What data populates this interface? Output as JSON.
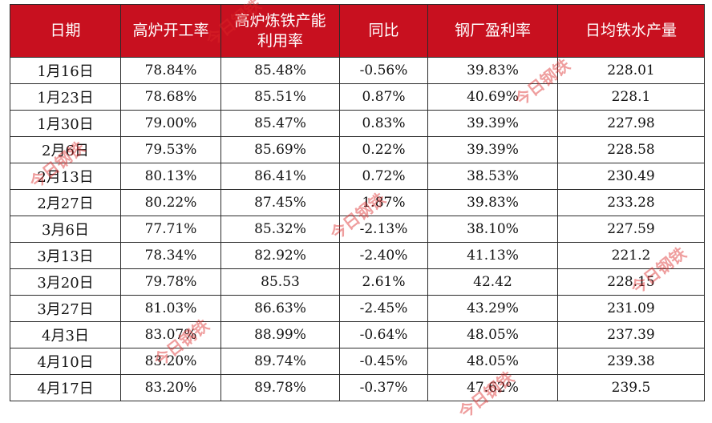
{
  "table": {
    "columns": [
      "日期",
      "高炉开工率",
      "高炉炼铁产能利用率",
      "同比",
      "钢厂盈利率",
      "日均铁水产量"
    ],
    "rows": [
      [
        "1月16日",
        "78.84%",
        "85.48%",
        "-0.56%",
        "39.83%",
        "228.01"
      ],
      [
        "1月23日",
        "78.68%",
        "85.51%",
        "0.87%",
        "40.69%",
        "228.1"
      ],
      [
        "1月30日",
        "79.00%",
        "85.47%",
        "0.83%",
        "39.39%",
        "227.98"
      ],
      [
        "2月6日",
        "79.53%",
        "85.69%",
        "0.22%",
        "39.39%",
        "228.58"
      ],
      [
        "2月13日",
        "80.13%",
        "86.41%",
        "0.72%",
        "38.53%",
        "230.49"
      ],
      [
        "2月27日",
        "80.22%",
        "87.45%",
        "1.87%",
        "39.83%",
        "233.28"
      ],
      [
        "3月6日",
        "77.71%",
        "85.32%",
        "-2.13%",
        "38.10%",
        "227.59"
      ],
      [
        "3月13日",
        "78.34%",
        "82.92%",
        "-2.40%",
        "41.13%",
        "221.2"
      ],
      [
        "3月20日",
        "79.78%",
        "85.53",
        "2.61%",
        "42.42",
        "228.15"
      ],
      [
        "3月27日",
        "81.03%",
        "86.63%",
        "-2.45%",
        "43.29%",
        "231.09"
      ],
      [
        "4月3日",
        "83.07%",
        "88.99%",
        "-0.64%",
        "48.05%",
        "237.39"
      ],
      [
        "4月10日",
        "83.20%",
        "89.74%",
        "-0.45%",
        "48.05%",
        "239.38"
      ],
      [
        "4月17日",
        "83.20%",
        "89.78%",
        "-0.37%",
        "47.62%",
        "239.5"
      ]
    ]
  },
  "watermark": "今日钢铁",
  "colors": {
    "header_bg": "#c8101f",
    "header_text": "#ffffff",
    "watermark": "#dc2828"
  }
}
